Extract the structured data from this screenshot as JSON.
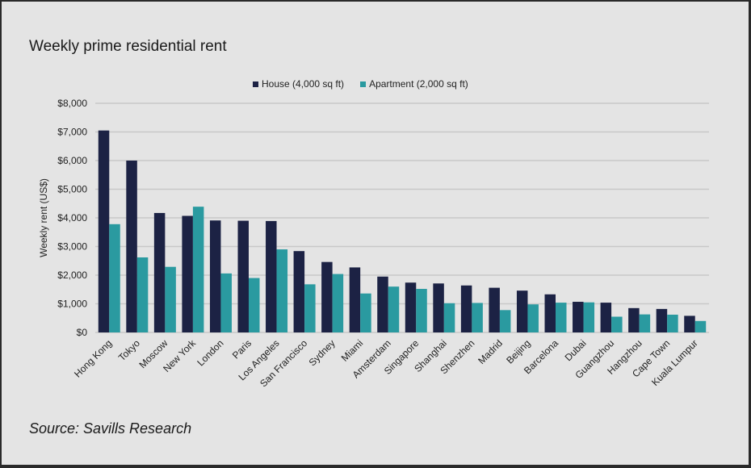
{
  "chart_data": {
    "type": "bar",
    "title": "Weekly prime residential rent",
    "ylabel": "Weekly rent (US$)",
    "xlabel": "",
    "ylim": [
      0,
      8000
    ],
    "yticks": [
      "$0",
      "$1,000",
      "$2,000",
      "$3,000",
      "$4,000",
      "$5,000",
      "$6,000",
      "$7,000",
      "$8,000"
    ],
    "grid": true,
    "legend_position": "top-center",
    "categories": [
      "Hong Kong",
      "Tokyo",
      "Moscow",
      "New York",
      "London",
      "Paris",
      "Los Angeles",
      "San Francisco",
      "Sydney",
      "Miami",
      "Amsterdam",
      "Singapore",
      "Shanghai",
      "Shenzhen",
      "Madrid",
      "Beijing",
      "Barcelona",
      "Dubai",
      "Guangzhou",
      "Hangzhou",
      "Cape Town",
      "Kuala Lumpur"
    ],
    "series": [
      {
        "name": "House (4,000 sq ft)",
        "color": "#1c2244",
        "values": [
          7050,
          6000,
          4170,
          4070,
          3910,
          3900,
          3890,
          2840,
          2460,
          2270,
          1950,
          1740,
          1710,
          1640,
          1560,
          1460,
          1330,
          1070,
          1040,
          850,
          820,
          580
        ]
      },
      {
        "name": "Apartment (2,000 sq ft)",
        "color": "#2a9aa0",
        "values": [
          3780,
          2620,
          2290,
          4390,
          2060,
          1900,
          2900,
          1680,
          2040,
          1360,
          1600,
          1520,
          1020,
          1030,
          780,
          980,
          1040,
          1050,
          550,
          630,
          620,
          400
        ]
      }
    ]
  },
  "source": "Source: Savills Research"
}
